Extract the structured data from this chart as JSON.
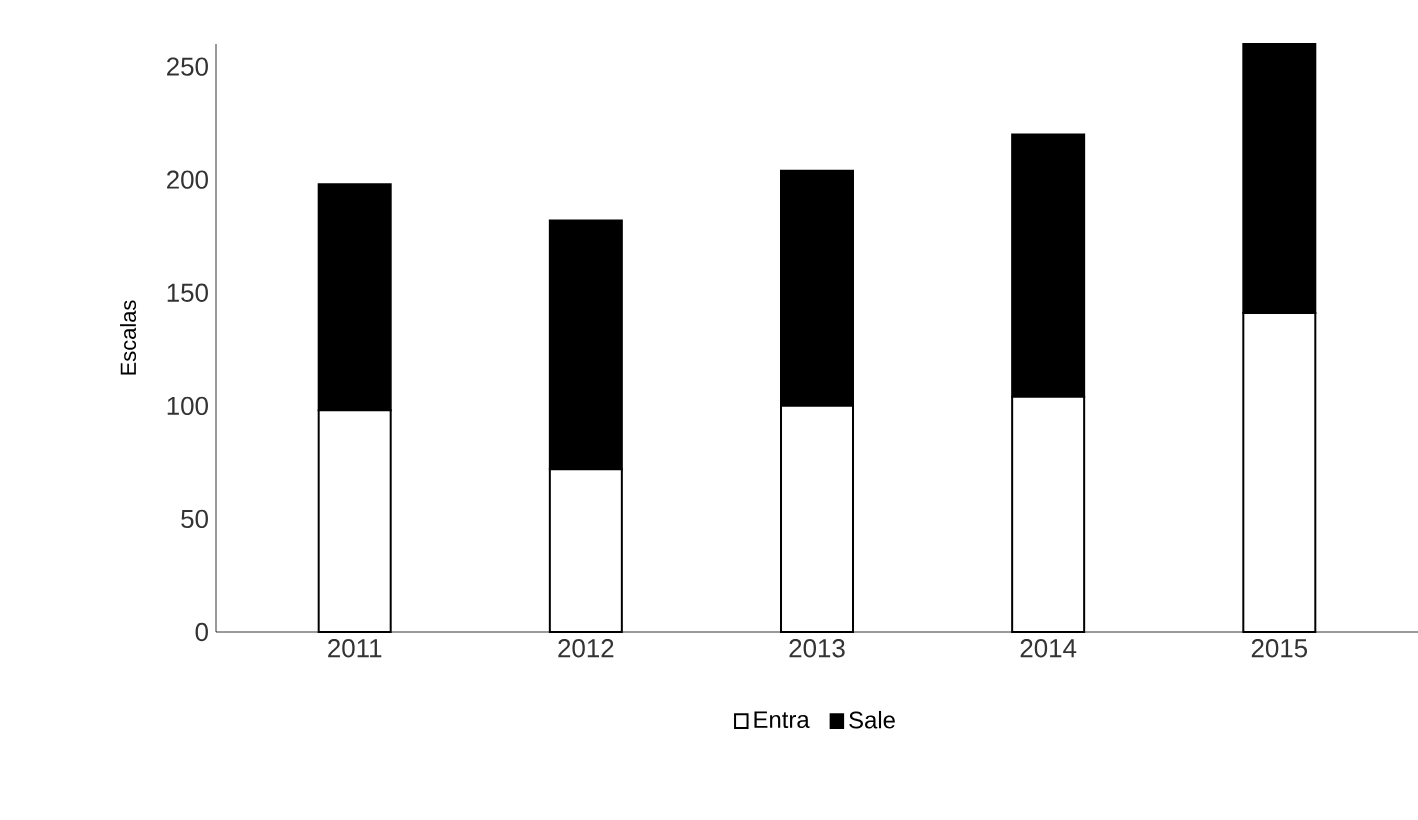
{
  "chart_data": {
    "type": "bar",
    "stacked": true,
    "ylabel": "Escalas",
    "categories": [
      "2011",
      "2012",
      "2013",
      "2014",
      "2015"
    ],
    "series": [
      {
        "name": "Entra",
        "color": "#ffffff",
        "values": [
          98,
          72,
          100,
          104,
          141
        ]
      },
      {
        "name": "Sale",
        "color": "#000000",
        "values": [
          100,
          110,
          104,
          116,
          119
        ]
      }
    ],
    "ylim": [
      0,
      260
    ],
    "yticks": [
      0,
      50,
      100,
      150,
      200,
      250
    ],
    "legend": "bottom",
    "grid": false
  }
}
